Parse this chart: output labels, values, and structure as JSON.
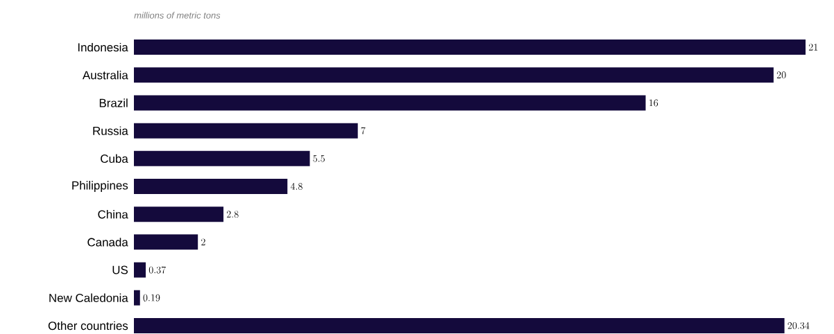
{
  "chart_data": {
    "type": "bar",
    "orientation": "horizontal",
    "subtitle": "millions of metric tons",
    "categories": [
      "Indonesia",
      "Australia",
      "Brazil",
      "Russia",
      "Cuba",
      "Philippines",
      "China",
      "Canada",
      "US",
      "New Caledonia",
      "Other countries"
    ],
    "values": [
      21,
      20,
      16,
      7,
      5.5,
      4.8,
      2.8,
      2,
      0.37,
      0.19,
      20.34
    ],
    "color": "#140a3c",
    "data_labels": true
  }
}
